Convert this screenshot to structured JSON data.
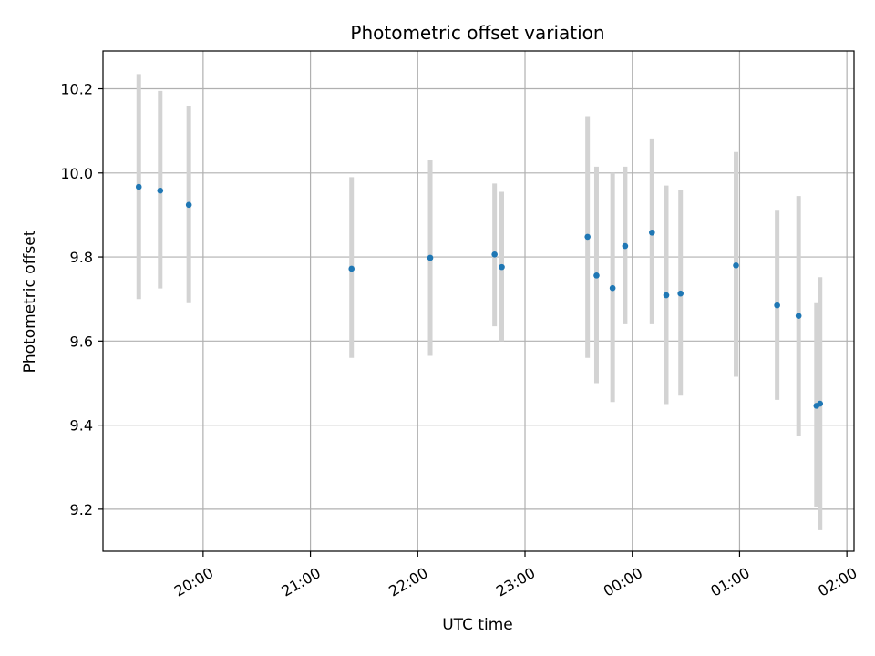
{
  "chart_data": {
    "type": "scatter",
    "title": "Photometric offset variation",
    "xlabel": "UTC time",
    "ylabel": "Photometric offset",
    "x_tick_labels": [
      "20:00",
      "21:00",
      "22:00",
      "23:00",
      "00:00",
      "01:00",
      "02:00"
    ],
    "y_tick_labels": [
      "9.2",
      "9.4",
      "9.6",
      "9.8",
      "10.0",
      "10.2"
    ],
    "x_ticks": [
      "20:00",
      "21:00",
      "22:00",
      "23:00",
      "00:00",
      "01:00",
      "02:00"
    ],
    "y_ticks": [
      9.2,
      9.4,
      9.6,
      9.8,
      10.0,
      10.2
    ],
    "xlim": [
      "19:04",
      "02:04"
    ],
    "ylim": [
      9.1,
      10.29
    ],
    "grid": true,
    "points": [
      {
        "x": "19:24",
        "y": 9.967,
        "y_low": 9.7,
        "y_high": 10.235
      },
      {
        "x": "19:36",
        "y": 9.958,
        "y_low": 9.725,
        "y_high": 10.195
      },
      {
        "x": "19:52",
        "y": 9.924,
        "y_low": 9.69,
        "y_high": 10.16
      },
      {
        "x": "21:23",
        "y": 9.772,
        "y_low": 9.56,
        "y_high": 9.99
      },
      {
        "x": "22:07",
        "y": 9.798,
        "y_low": 9.565,
        "y_high": 10.03
      },
      {
        "x": "22:43",
        "y": 9.806,
        "y_low": 9.635,
        "y_high": 9.975
      },
      {
        "x": "22:47",
        "y": 9.776,
        "y_low": 9.6,
        "y_high": 9.955
      },
      {
        "x": "23:35",
        "y": 9.848,
        "y_low": 9.56,
        "y_high": 10.135
      },
      {
        "x": "23:40",
        "y": 9.756,
        "y_low": 9.5,
        "y_high": 10.015
      },
      {
        "x": "23:49",
        "y": 9.726,
        "y_low": 9.455,
        "y_high": 10.0
      },
      {
        "x": "23:56",
        "y": 9.826,
        "y_low": 9.64,
        "y_high": 10.015
      },
      {
        "x": "00:11",
        "y": 9.858,
        "y_low": 9.64,
        "y_high": 10.08
      },
      {
        "x": "00:19",
        "y": 9.709,
        "y_low": 9.45,
        "y_high": 9.97
      },
      {
        "x": "00:27",
        "y": 9.713,
        "y_low": 9.47,
        "y_high": 9.96
      },
      {
        "x": "00:58",
        "y": 9.78,
        "y_low": 9.515,
        "y_high": 10.05
      },
      {
        "x": "01:21",
        "y": 9.685,
        "y_low": 9.46,
        "y_high": 9.91
      },
      {
        "x": "01:33",
        "y": 9.66,
        "y_low": 9.375,
        "y_high": 9.945
      },
      {
        "x": "01:43",
        "y": 9.446,
        "y_low": 9.205,
        "y_high": 9.69
      },
      {
        "x": "01:45",
        "y": 9.451,
        "y_low": 9.15,
        "y_high": 9.752
      }
    ],
    "colors": {
      "marker": "#1f77b4",
      "errorbar": "#d3d3d3",
      "grid": "#b0b0b0"
    }
  }
}
